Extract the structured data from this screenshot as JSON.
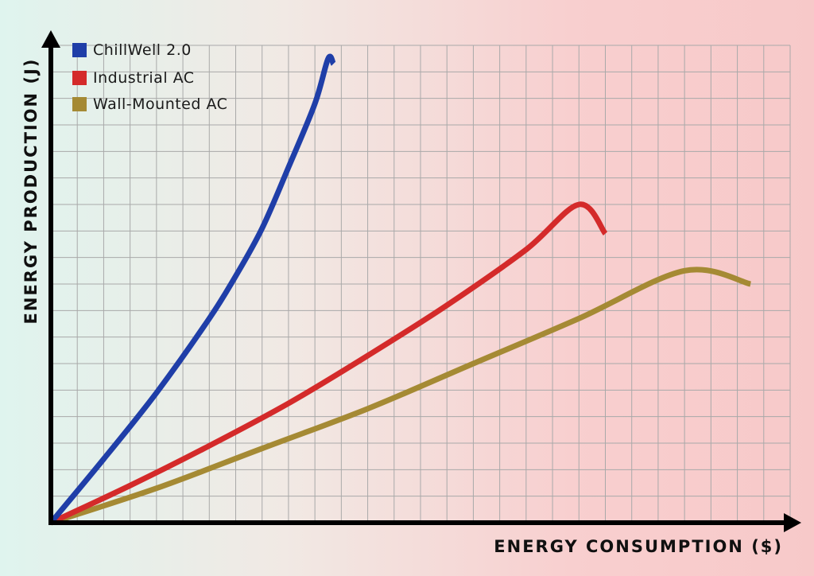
{
  "chart_data": {
    "type": "line",
    "xlabel": "ENERGY CONSUMPTION ($)",
    "ylabel": "ENERGY PRODUCTION (J)",
    "xlim": [
      0,
      28
    ],
    "ylim": [
      0,
      18
    ],
    "grid": true,
    "legend_position": "top-left",
    "series": [
      {
        "name": "ChillWell 2.0",
        "color": "#1f3ea8",
        "x": [
          0,
          2,
          4,
          6,
          7,
          8,
          9,
          10,
          10.5,
          10.7
        ],
        "y": [
          0,
          2.4,
          4.9,
          7.7,
          9.3,
          11.1,
          13.4,
          15.8,
          17.5,
          17.3
        ]
      },
      {
        "name": "Industrial AC",
        "color": "#d42a2a",
        "x": [
          0,
          3,
          6,
          9,
          12,
          15,
          18,
          20,
          21
        ],
        "y": [
          0,
          1.4,
          2.9,
          4.5,
          6.3,
          8.2,
          10.3,
          12.0,
          10.9
        ]
      },
      {
        "name": "Wall-Mounted AC",
        "color": "#a58a34",
        "x": [
          0,
          4,
          8,
          12,
          16,
          20,
          24,
          26.5
        ],
        "y": [
          0,
          1.3,
          2.8,
          4.3,
          6.0,
          7.7,
          9.5,
          9.0
        ]
      }
    ]
  }
}
